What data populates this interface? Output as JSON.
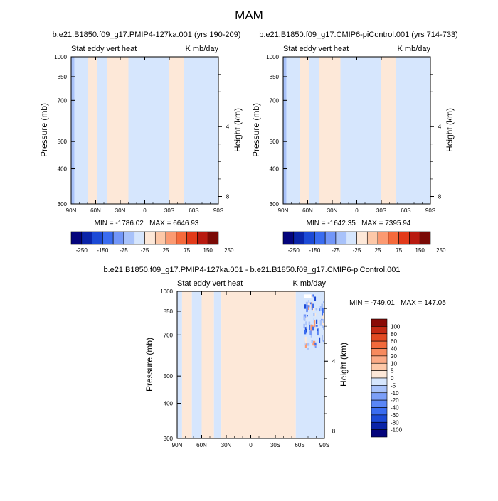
{
  "figure_title": "MAM",
  "colors": {
    "scale_a": [
      "#04047c",
      "#0a24a8",
      "#1c4ad6",
      "#3a6cf0",
      "#7296f8",
      "#a8c2fa",
      "#d6e6fd",
      "#fde8d8",
      "#fdc8a8",
      "#fb9a72",
      "#f56a3c",
      "#e23a1a",
      "#b81a10",
      "#7a0a06"
    ],
    "scale_b": [
      "#04047c",
      "#0a24a8",
      "#1c4ad6",
      "#3a6cf0",
      "#5a86f6",
      "#7c9ff8",
      "#a8c2fa",
      "#d6e6fd",
      "#fde8d8",
      "#fdc8a8",
      "#fbaa86",
      "#f78a5e",
      "#f26a3c",
      "#e24a22",
      "#c42a14",
      "#8a0a06"
    ]
  },
  "chart_data": [
    {
      "type": "heatmap",
      "title": "b.e21.B1850.f09_g17.PMIP4-127ka.001 (yrs 190-209)",
      "left_string": "Stat eddy vert heat",
      "right_string": "K mb/day",
      "xlabel": "",
      "ylabel": "Pressure (mb)",
      "ylabel_right": "Height (km)",
      "x_ticks": [
        "90N",
        "60N",
        "30N",
        "0",
        "30S",
        "60S",
        "90S"
      ],
      "x_tick_lat": [
        90,
        60,
        30,
        0,
        -30,
        -60,
        -90
      ],
      "y_ticks": [
        "300",
        "400",
        "500",
        "700",
        "850",
        "1000"
      ],
      "y_tick_values": [
        300,
        400,
        500,
        700,
        850,
        1000
      ],
      "height_ticks": [
        "8",
        "4"
      ],
      "height_tick_km": [
        8,
        4
      ],
      "ylim": [
        1000,
        300
      ],
      "xlim": [
        90,
        -90
      ],
      "stats": "MIN = -1786.02   MAX = 6646.93",
      "min": -1786.02,
      "max": 6646.93,
      "colorbar_levels": [
        -250,
        -200,
        -150,
        -100,
        -75,
        -50,
        -25,
        25,
        50,
        75,
        100,
        150,
        200,
        250
      ],
      "colorbar_labels": [
        "-250",
        "-150",
        "-75",
        "-25",
        "25",
        "75",
        "150",
        "250"
      ]
    },
    {
      "type": "heatmap",
      "title": "b.e21.B1850.f09_g17.CMIP6-piControl.001 (yrs 714-733)",
      "left_string": "Stat eddy vert heat",
      "right_string": "K mb/day",
      "xlabel": "",
      "ylabel": "Pressure (mb)",
      "ylabel_right": "Height (km)",
      "x_ticks": [
        "90N",
        "60N",
        "30N",
        "0",
        "30S",
        "60S",
        "90S"
      ],
      "x_tick_lat": [
        90,
        60,
        30,
        0,
        -30,
        -60,
        -90
      ],
      "y_ticks": [
        "300",
        "400",
        "500",
        "700",
        "850",
        "1000"
      ],
      "y_tick_values": [
        300,
        400,
        500,
        700,
        850,
        1000
      ],
      "height_ticks": [
        "8",
        "4"
      ],
      "height_tick_km": [
        8,
        4
      ],
      "ylim": [
        1000,
        300
      ],
      "xlim": [
        90,
        -90
      ],
      "stats": "MIN = -1642.35   MAX = 7395.94",
      "min": -1642.35,
      "max": 7395.94,
      "colorbar_levels": [
        -250,
        -200,
        -150,
        -100,
        -75,
        -50,
        -25,
        25,
        50,
        75,
        100,
        150,
        200,
        250
      ],
      "colorbar_labels": [
        "-250",
        "-150",
        "-75",
        "-25",
        "25",
        "75",
        "150",
        "250"
      ]
    },
    {
      "type": "heatmap",
      "title": "b.e21.B1850.f09_g17.PMIP4-127ka.001 - b.e21.B1850.f09_g17.CMIP6-piControl.001",
      "left_string": "Stat eddy vert heat",
      "right_string": "K mb/day",
      "xlabel": "",
      "ylabel": "Pressure (mb)",
      "ylabel_right": "Height (km)",
      "x_ticks": [
        "90N",
        "60N",
        "30N",
        "0",
        "30S",
        "60S",
        "90S"
      ],
      "x_tick_lat": [
        90,
        60,
        30,
        0,
        -30,
        -60,
        -90
      ],
      "y_ticks": [
        "300",
        "400",
        "500",
        "700",
        "850",
        "1000"
      ],
      "y_tick_values": [
        300,
        400,
        500,
        700,
        850,
        1000
      ],
      "height_ticks": [
        "8",
        "4"
      ],
      "height_tick_km": [
        8,
        4
      ],
      "ylim": [
        1000,
        300
      ],
      "xlim": [
        90,
        -90
      ],
      "stats": "MIN = -749.01   MAX = 147.05",
      "min": -749.01,
      "max": 147.05,
      "colorbar_levels": [
        -100,
        -80,
        -60,
        -40,
        -20,
        -10,
        -5,
        0,
        5,
        10,
        20,
        40,
        60,
        80,
        100
      ],
      "colorbar_labels": [
        "100",
        "80",
        "60",
        "40",
        "20",
        "10",
        "5",
        "0",
        "-5",
        "-10",
        "-20",
        "-40",
        "-60",
        "-80",
        "-100"
      ]
    }
  ]
}
